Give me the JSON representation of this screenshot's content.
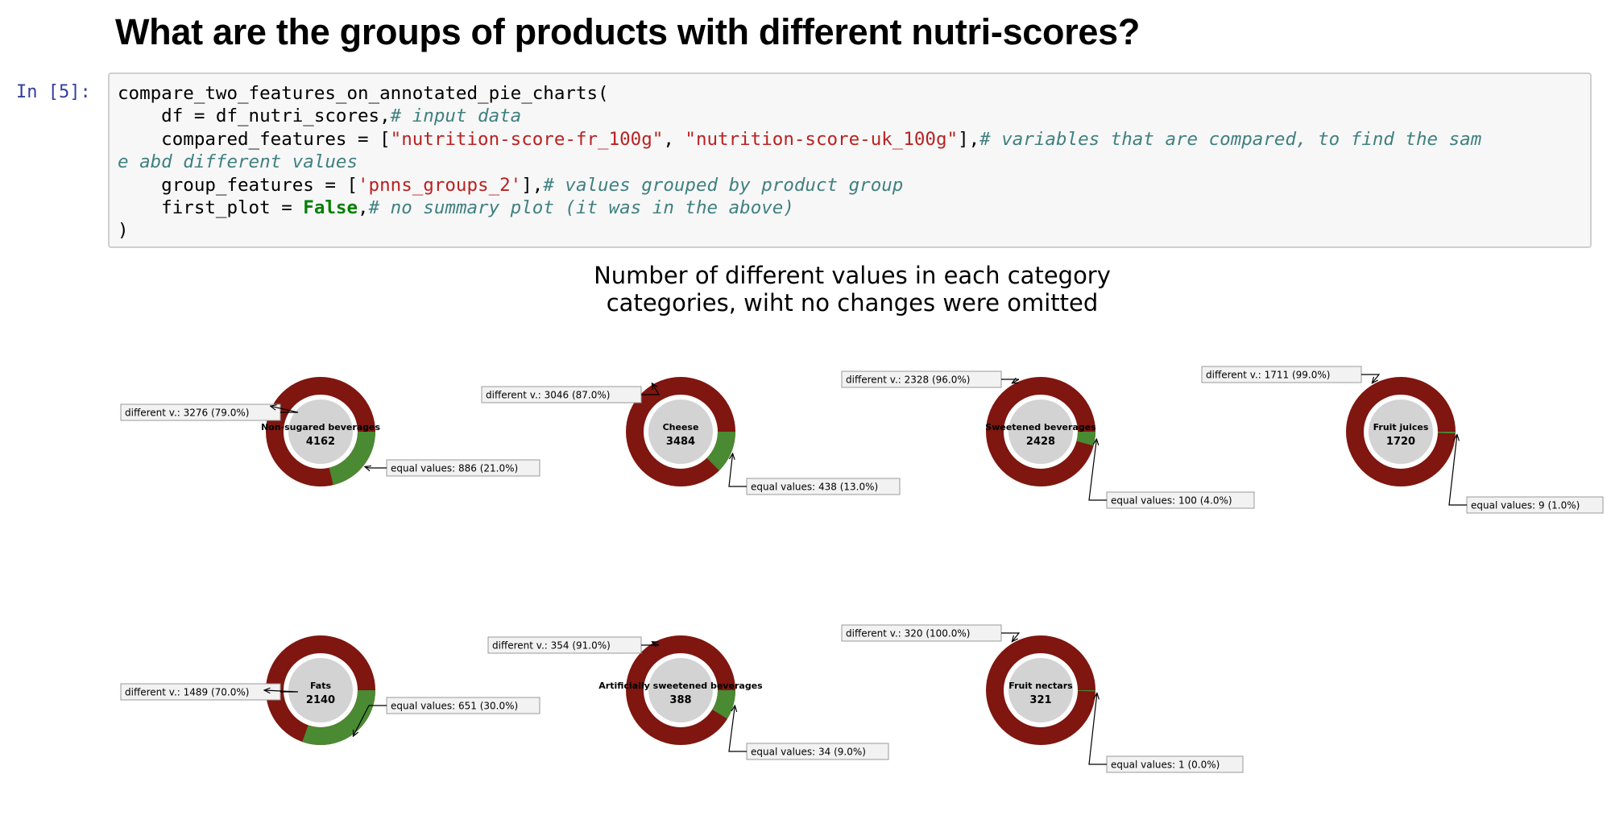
{
  "heading": "What are the groups of products with different nutri-scores?",
  "cell": {
    "prompt": "In [5]:",
    "lines": [
      [
        {
          "t": "compare_two_features_on_annotated_pie_charts(",
          "c": ""
        }
      ],
      [
        {
          "t": "    df = df_nutri_scores,",
          "c": ""
        },
        {
          "t": "# input data",
          "c": "com"
        }
      ],
      [
        {
          "t": "    compared_features = [",
          "c": ""
        },
        {
          "t": "\"nutrition-score-fr_100g\"",
          "c": "str"
        },
        {
          "t": ", ",
          "c": ""
        },
        {
          "t": "\"nutrition-score-uk_100g\"",
          "c": "str"
        },
        {
          "t": "],",
          "c": ""
        },
        {
          "t": "# variables that are compared, to find the sam",
          "c": "com"
        }
      ],
      [
        {
          "t": "e abd different values",
          "c": "com"
        }
      ],
      [
        {
          "t": "    group_features = [",
          "c": ""
        },
        {
          "t": "'pnns_groups_2'",
          "c": "str"
        },
        {
          "t": "],",
          "c": ""
        },
        {
          "t": "# values grouped by product group",
          "c": "com"
        }
      ],
      [
        {
          "t": "    first_plot = ",
          "c": ""
        },
        {
          "t": "False",
          "c": "kw"
        },
        {
          "t": ",",
          "c": ""
        },
        {
          "t": "# no summary plot (it was in the above)",
          "c": "com"
        }
      ],
      [
        {
          "t": ")",
          "c": ""
        }
      ]
    ]
  },
  "chart_data": {
    "type": "pie",
    "title": "Number of different values in each category",
    "subtitle": "categories, wiht no changes were omitted",
    "colors": {
      "different": "#7f1610",
      "equal": "#4a8a32",
      "center": "#d3d3d3"
    },
    "different_prefix": "different v.: ",
    "equal_prefix": "equal values: ",
    "groups": [
      {
        "name": "Non-sugared beverages",
        "total": 4162,
        "different": 3276,
        "different_pct": "79.0%",
        "equal": 886,
        "equal_pct": "21.0%"
      },
      {
        "name": "Cheese",
        "total": 3484,
        "different": 3046,
        "different_pct": "87.0%",
        "equal": 438,
        "equal_pct": "13.0%"
      },
      {
        "name": "Sweetened beverages",
        "total": 2428,
        "different": 2328,
        "different_pct": "96.0%",
        "equal": 100,
        "equal_pct": "4.0%"
      },
      {
        "name": "Fruit juices",
        "total": 1720,
        "different": 1711,
        "different_pct": "99.0%",
        "equal": 9,
        "equal_pct": "1.0%"
      },
      {
        "name": "Fats",
        "total": 2140,
        "different": 1489,
        "different_pct": "70.0%",
        "equal": 651,
        "equal_pct": "30.0%"
      },
      {
        "name": "Artificially sweetened beverages",
        "total": 388,
        "different": 354,
        "different_pct": "91.0%",
        "equal": 34,
        "equal_pct": "9.0%"
      },
      {
        "name": "Fruit nectars",
        "total": 321,
        "different": 320,
        "different_pct": "100.0%",
        "equal": 1,
        "equal_pct": "0.0%"
      }
    ]
  }
}
